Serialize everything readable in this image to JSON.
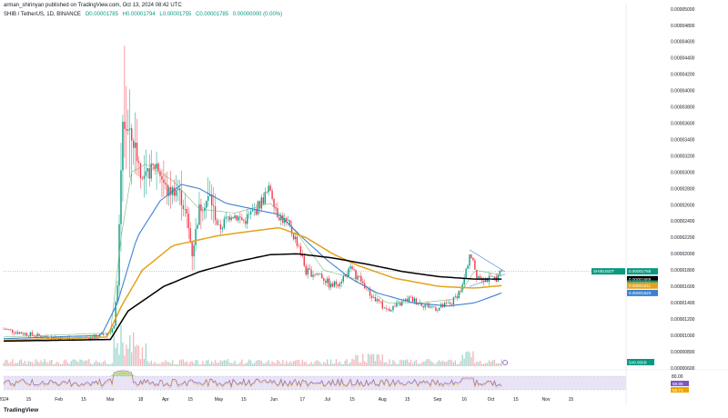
{
  "header": {
    "publisher": "arman_shirinyan published on TradingView.com, Oct 13, 2024 08:42 UTC",
    "symbol": "SHIB / TetherUS, 1D, BINANCE",
    "open": "O0.00001785",
    "high": "H0.00001794",
    "low": "L0.00001755",
    "close": "C0.00001785",
    "change": "0.00000000 (0.00%)"
  },
  "footer": {
    "brand": "TradingView"
  },
  "colors": {
    "up": "#089981",
    "down": "#f23645",
    "ma_black": "#000000",
    "ma_orange": "#e3a21a",
    "ma_blue": "#3d82d1",
    "ma_green": "#7cb87a",
    "rsi": "#7e57c2",
    "rsi_band": "#e8e3f5"
  },
  "chart_data": {
    "type": "candlestick",
    "x_tick_labels": [
      "2024",
      "15",
      "Feb",
      "15",
      "Mar",
      "18",
      "Apr",
      "15",
      "May",
      "15",
      "Jun",
      "17",
      "Jul",
      "15",
      "Aug",
      "15",
      "Sep",
      "16",
      "Oct",
      "15",
      "Nov",
      "15"
    ],
    "y_tick_labels": [
      "0.00005000",
      "0.00004800",
      "0.00004600",
      "0.00004400",
      "0.00004200",
      "0.00004000",
      "0.00003800",
      "0.00003600",
      "0.00003400",
      "0.00003200",
      "0.00003000",
      "0.00002800",
      "0.00002600",
      "0.00002400",
      "0.00002200",
      "0.00002000",
      "0.00001800",
      "0.00001600",
      "0.00001400",
      "0.00001200",
      "0.00001000",
      "0.00000800",
      "0.00000600"
    ],
    "ylim": [
      6e-06,
      5e-05
    ],
    "price_tags": [
      {
        "label": "SHIBUSDT",
        "value": "0.00001785",
        "color": "#089981"
      },
      {
        "value": "0.00001689",
        "color": "#000000"
      },
      {
        "value": "0.00001669",
        "color": "#089981"
      },
      {
        "value": "0.00001611",
        "color": "#e3a21a"
      },
      {
        "value": "0.00001520",
        "color": "#3d82d1"
      }
    ],
    "volume_tag": "549.956B",
    "rsi": {
      "levels": [
        "80.00"
      ],
      "values": [
        "58.85",
        "56.71"
      ]
    },
    "anchors": [
      {
        "d": 0,
        "p": 1.08e-05
      },
      {
        "d": 10,
        "p": 1.03e-05
      },
      {
        "d": 20,
        "p": 9.9e-06
      },
      {
        "d": 30,
        "p": 9.7e-06
      },
      {
        "d": 40,
        "p": 9.6e-06
      },
      {
        "d": 52,
        "p": 9.8e-06
      },
      {
        "d": 58,
        "p": 1.02e-05
      },
      {
        "d": 62,
        "p": 1.1e-05
      },
      {
        "d": 64,
        "p": 1.65e-05
      },
      {
        "d": 67,
        "p": 3.6e-05
      },
      {
        "d": 70,
        "p": 3.5e-05
      },
      {
        "d": 74,
        "p": 3.3e-05
      },
      {
        "d": 78,
        "p": 2.9e-05
      },
      {
        "d": 82,
        "p": 3e-05
      },
      {
        "d": 86,
        "p": 3.1e-05
      },
      {
        "d": 92,
        "p": 2.75e-05
      },
      {
        "d": 98,
        "p": 2.8e-05
      },
      {
        "d": 103,
        "p": 2.45e-05
      },
      {
        "d": 106,
        "p": 2e-05
      },
      {
        "d": 110,
        "p": 2.55e-05
      },
      {
        "d": 116,
        "p": 2.7e-05
      },
      {
        "d": 121,
        "p": 2.3e-05
      },
      {
        "d": 128,
        "p": 2.5e-05
      },
      {
        "d": 135,
        "p": 2.4e-05
      },
      {
        "d": 142,
        "p": 2.55e-05
      },
      {
        "d": 150,
        "p": 2.8e-05
      },
      {
        "d": 154,
        "p": 2.5e-05
      },
      {
        "d": 160,
        "p": 2.35e-05
      },
      {
        "d": 166,
        "p": 2.1e-05
      },
      {
        "d": 170,
        "p": 1.78e-05
      },
      {
        "d": 178,
        "p": 1.75e-05
      },
      {
        "d": 184,
        "p": 1.6e-05
      },
      {
        "d": 188,
        "p": 1.65e-05
      },
      {
        "d": 195,
        "p": 1.8e-05
      },
      {
        "d": 200,
        "p": 1.7e-05
      },
      {
        "d": 206,
        "p": 1.5e-05
      },
      {
        "d": 215,
        "p": 1.32e-05
      },
      {
        "d": 220,
        "p": 1.35e-05
      },
      {
        "d": 228,
        "p": 1.45e-05
      },
      {
        "d": 236,
        "p": 1.38e-05
      },
      {
        "d": 244,
        "p": 1.33e-05
      },
      {
        "d": 252,
        "p": 1.4e-05
      },
      {
        "d": 258,
        "p": 1.6e-05
      },
      {
        "d": 262,
        "p": 2e-05
      },
      {
        "d": 266,
        "p": 1.75e-05
      },
      {
        "d": 270,
        "p": 1.7e-05
      },
      {
        "d": 274,
        "p": 1.68e-05
      },
      {
        "d": 278,
        "p": 1.72e-05
      },
      {
        "d": 280,
        "p": 1.785e-05
      }
    ],
    "ma_black": [
      {
        "d": 0,
        "p": 9.3e-06
      },
      {
        "d": 60,
        "p": 9.5e-06
      },
      {
        "d": 70,
        "p": 1.3e-05
      },
      {
        "d": 90,
        "p": 1.6e-05
      },
      {
        "d": 110,
        "p": 1.78e-05
      },
      {
        "d": 130,
        "p": 1.9e-05
      },
      {
        "d": 150,
        "p": 1.99e-05
      },
      {
        "d": 165,
        "p": 2e-05
      },
      {
        "d": 185,
        "p": 1.95e-05
      },
      {
        "d": 205,
        "p": 1.87e-05
      },
      {
        "d": 225,
        "p": 1.78e-05
      },
      {
        "d": 245,
        "p": 1.72e-05
      },
      {
        "d": 265,
        "p": 1.69e-05
      },
      {
        "d": 280,
        "p": 1.69e-05
      }
    ],
    "ma_orange": [
      {
        "d": 0,
        "p": 9.4e-06
      },
      {
        "d": 58,
        "p": 9.8e-06
      },
      {
        "d": 66,
        "p": 1.35e-05
      },
      {
        "d": 78,
        "p": 1.8e-05
      },
      {
        "d": 95,
        "p": 2.1e-05
      },
      {
        "d": 120,
        "p": 2.22e-05
      },
      {
        "d": 140,
        "p": 2.28e-05
      },
      {
        "d": 155,
        "p": 2.32e-05
      },
      {
        "d": 170,
        "p": 2.2e-05
      },
      {
        "d": 185,
        "p": 2e-05
      },
      {
        "d": 200,
        "p": 1.85e-05
      },
      {
        "d": 220,
        "p": 1.7e-05
      },
      {
        "d": 245,
        "p": 1.6e-05
      },
      {
        "d": 265,
        "p": 1.58e-05
      },
      {
        "d": 280,
        "p": 1.61e-05
      }
    ],
    "ma_blue": [
      {
        "d": 0,
        "p": 9.6e-06
      },
      {
        "d": 55,
        "p": 1e-05
      },
      {
        "d": 64,
        "p": 1.4e-05
      },
      {
        "d": 75,
        "p": 2.2e-05
      },
      {
        "d": 88,
        "p": 2.65e-05
      },
      {
        "d": 100,
        "p": 2.85e-05
      },
      {
        "d": 110,
        "p": 2.8e-05
      },
      {
        "d": 125,
        "p": 2.62e-05
      },
      {
        "d": 140,
        "p": 2.55e-05
      },
      {
        "d": 155,
        "p": 2.48e-05
      },
      {
        "d": 168,
        "p": 2.2e-05
      },
      {
        "d": 182,
        "p": 1.92e-05
      },
      {
        "d": 195,
        "p": 1.7e-05
      },
      {
        "d": 210,
        "p": 1.52e-05
      },
      {
        "d": 230,
        "p": 1.4e-05
      },
      {
        "d": 250,
        "p": 1.36e-05
      },
      {
        "d": 265,
        "p": 1.4e-05
      },
      {
        "d": 280,
        "p": 1.52e-05
      }
    ],
    "ma_green": [
      {
        "d": 0,
        "p": 9.8e-06
      },
      {
        "d": 60,
        "p": 1.03e-05
      },
      {
        "d": 66,
        "p": 2.2e-05
      },
      {
        "d": 72,
        "p": 3e-05
      },
      {
        "d": 80,
        "p": 3.1e-05
      },
      {
        "d": 95,
        "p": 2.9e-05
      },
      {
        "d": 110,
        "p": 2.55e-05
      },
      {
        "d": 130,
        "p": 2.5e-05
      },
      {
        "d": 150,
        "p": 2.62e-05
      },
      {
        "d": 165,
        "p": 2.25e-05
      },
      {
        "d": 180,
        "p": 1.8e-05
      },
      {
        "d": 200,
        "p": 1.68e-05
      },
      {
        "d": 215,
        "p": 1.4e-05
      },
      {
        "d": 235,
        "p": 1.4e-05
      },
      {
        "d": 255,
        "p": 1.45e-05
      },
      {
        "d": 265,
        "p": 1.8e-05
      },
      {
        "d": 280,
        "p": 1.74e-05
      }
    ]
  }
}
